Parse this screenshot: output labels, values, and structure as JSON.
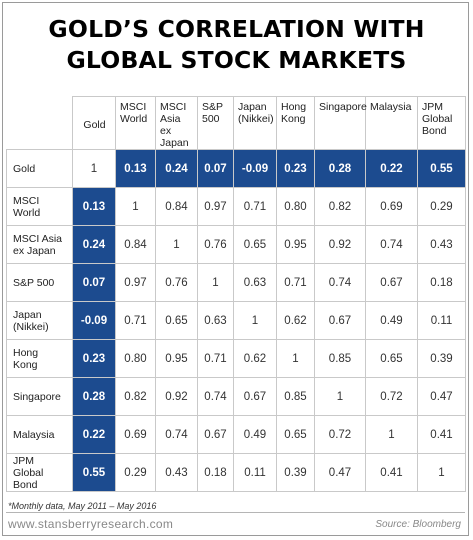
{
  "title_lines": [
    "GOLD’S CORRELATION WITH",
    "GLOBAL STOCK MARKETS"
  ],
  "colors": {
    "highlight": "#1c4b8f",
    "highlight_text": "#ffffff",
    "grid": "#c9c9c9"
  },
  "chart_data": {
    "type": "table",
    "title": "GOLD’S CORRELATION WITH GLOBAL STOCK MARKETS",
    "columns": [
      "Gold",
      "MSCI World",
      "MSCI Asia ex Japan",
      "S&P 500",
      "Japan (Nikkei)",
      "Hong Kong",
      "Singapore",
      "Malaysia",
      "JPM Global Bond"
    ],
    "column_header_lines": [
      [
        "Gold"
      ],
      [
        "MSCI",
        "World"
      ],
      [
        "MSCI",
        "Asia ex",
        "Japan"
      ],
      [
        "S&P",
        "500"
      ],
      [
        "Japan",
        "(Nikkei)"
      ],
      [
        "Hong",
        "Kong"
      ],
      [
        "Singapore"
      ],
      [
        "Malaysia"
      ],
      [
        "JPM",
        "Global",
        "Bond"
      ]
    ],
    "rows": [
      {
        "label_lines": [
          "Gold"
        ],
        "values": [
          "1",
          "0.13",
          "0.24",
          "0.07",
          "-0.09",
          "0.23",
          "0.28",
          "0.22",
          "0.55"
        ]
      },
      {
        "label_lines": [
          "MSCI",
          "World"
        ],
        "values": [
          "0.13",
          "1",
          "0.84",
          "0.97",
          "0.71",
          "0.80",
          "0.82",
          "0.69",
          "0.29"
        ]
      },
      {
        "label_lines": [
          "MSCI Asia",
          "ex Japan"
        ],
        "values": [
          "0.24",
          "0.84",
          "1",
          "0.76",
          "0.65",
          "0.95",
          "0.92",
          "0.74",
          "0.43"
        ]
      },
      {
        "label_lines": [
          "S&P 500"
        ],
        "values": [
          "0.07",
          "0.97",
          "0.76",
          "1",
          "0.63",
          "0.71",
          "0.74",
          "0.67",
          "0.18"
        ]
      },
      {
        "label_lines": [
          "Japan",
          "(Nikkei)"
        ],
        "values": [
          "-0.09",
          "0.71",
          "0.65",
          "0.63",
          "1",
          "0.62",
          "0.67",
          "0.49",
          "0.11"
        ]
      },
      {
        "label_lines": [
          "Hong",
          "Kong"
        ],
        "values": [
          "0.23",
          "0.80",
          "0.95",
          "0.71",
          "0.62",
          "1",
          "0.85",
          "0.65",
          "0.39"
        ]
      },
      {
        "label_lines": [
          "Singapore"
        ],
        "values": [
          "0.28",
          "0.82",
          "0.92",
          "0.74",
          "0.67",
          "0.85",
          "1",
          "0.72",
          "0.47"
        ]
      },
      {
        "label_lines": [
          "Malaysia"
        ],
        "values": [
          "0.22",
          "0.69",
          "0.74",
          "0.67",
          "0.49",
          "0.65",
          "0.72",
          "1",
          "0.41"
        ]
      },
      {
        "label_lines": [
          "JPM",
          "Global",
          "Bond"
        ],
        "values": [
          "0.55",
          "0.29",
          "0.43",
          "0.18",
          "0.11",
          "0.39",
          "0.47",
          "0.41",
          "1"
        ]
      }
    ]
  },
  "footnote": "*Monthly data, May 2011 – May 2016",
  "website": "www.stansberryresearch.com",
  "source": "Source: Bloomberg"
}
